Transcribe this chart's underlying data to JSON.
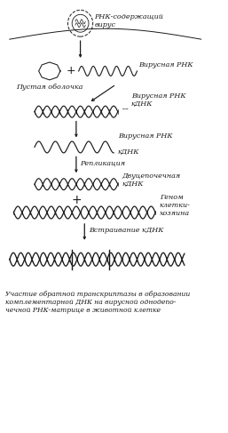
{
  "caption": "Участие обратной транскриптазы в образовании\nкомплементарной ДНК на вирусной однодепо-\nчечной РНК-матрице в животной клетке",
  "labels": {
    "virus": "РНК-содержащий\nвирус",
    "empty_shell": "Пустая оболочка",
    "viral_rna": "Вирусная РНК",
    "viral_rna_cdna": "Вирусная РНК\nкДНК",
    "viral_rna2": "Вирусная РНК",
    "cdna": "кДНК",
    "replication": "Репликация",
    "double_cdna": "Двуцепочечная\nкДНК",
    "genome": "Геном\nклетки-\nхозяина",
    "insertion": "Встраивание кДНК"
  },
  "bg_color": "#ffffff",
  "line_color": "#1a1a1a",
  "font_size": 5.8,
  "caption_font_size": 5.5
}
